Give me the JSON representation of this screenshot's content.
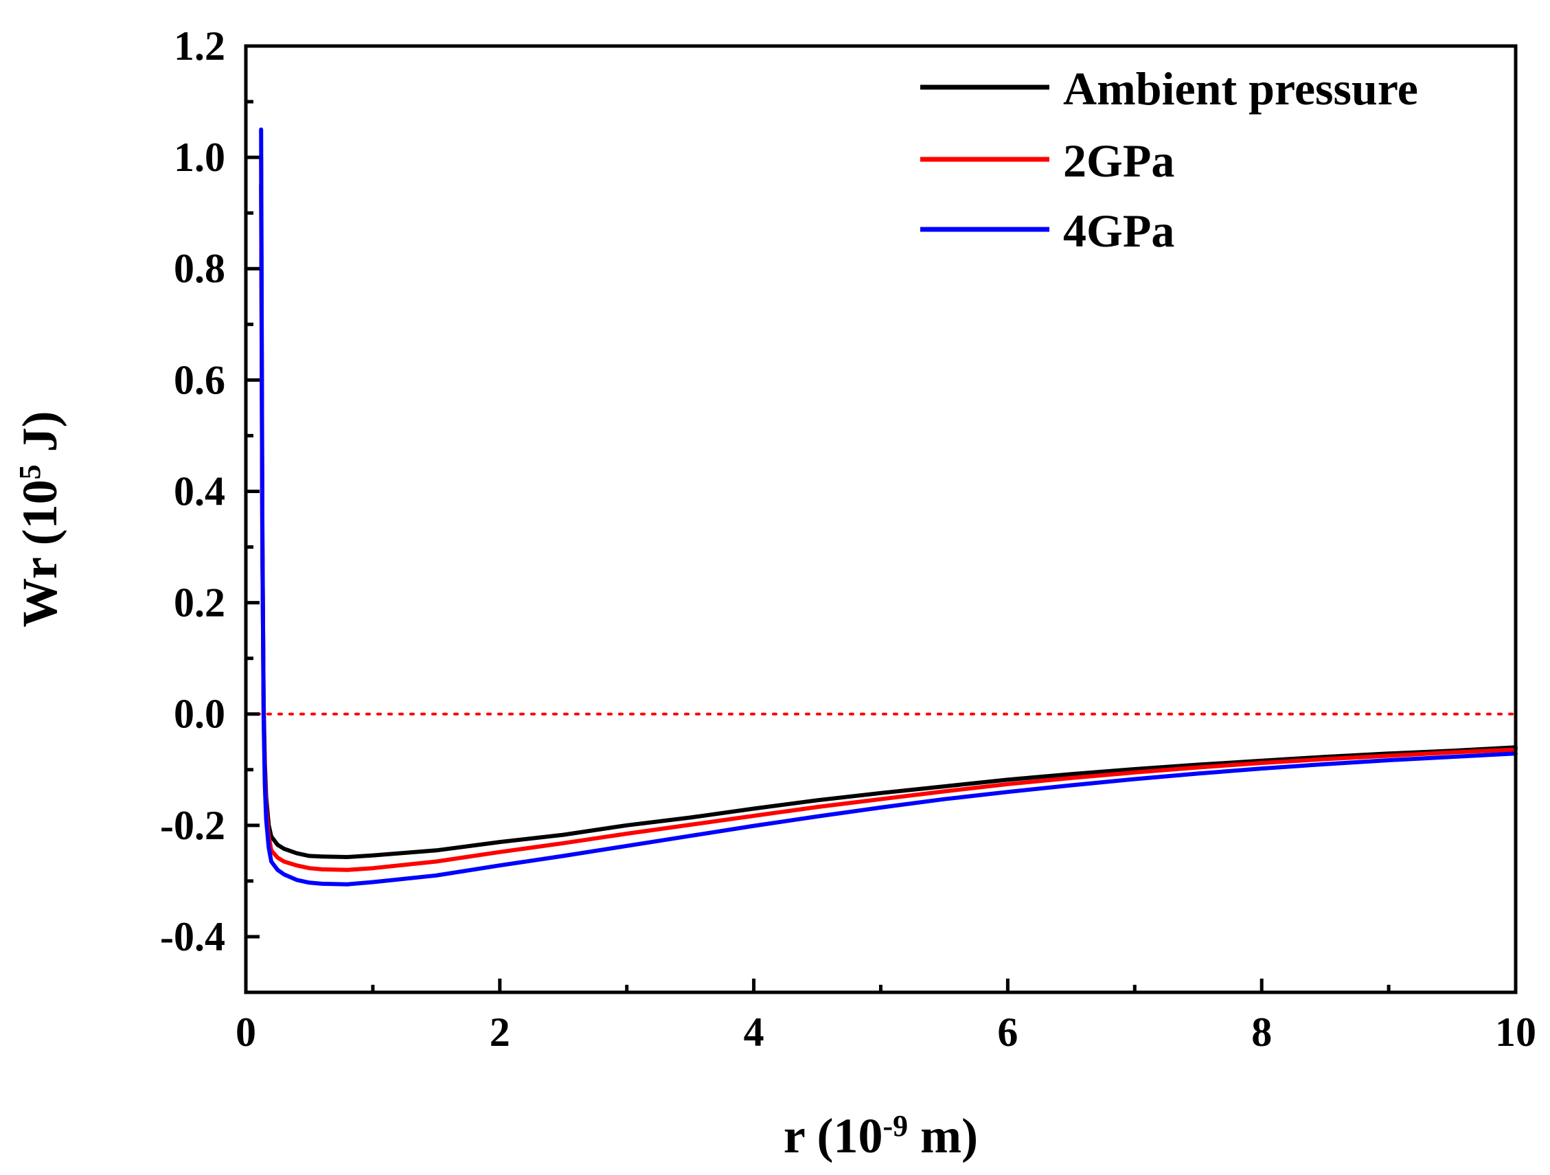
{
  "chart_data": {
    "type": "line",
    "title": "",
    "xlabel": {
      "main": "r (10",
      "sup": "-9",
      "tail": " m)"
    },
    "ylabel": {
      "main": "Wr (10",
      "sup": "5",
      "tail": " J)"
    },
    "xlim": [
      0,
      10
    ],
    "ylim": [
      -0.5,
      1.2
    ],
    "x_ticks": [
      0,
      2,
      4,
      6,
      8,
      10
    ],
    "x_tick_labels": [
      "0",
      "2",
      "4",
      "6",
      "8",
      "10"
    ],
    "y_ticks": [
      -0.4,
      -0.2,
      0.0,
      0.2,
      0.4,
      0.6,
      0.8,
      1.0,
      1.2
    ],
    "y_tick_labels": [
      "-0.4",
      "-0.2",
      "0.0",
      "0.2",
      "0.4",
      "0.6",
      "0.8",
      "1.0",
      "1.2"
    ],
    "grid": false,
    "legend_position": "top-right",
    "reference_line": {
      "y": 0.0,
      "style": "dotted",
      "color": "#ff0000"
    },
    "series": [
      {
        "name": "Ambient pressure",
        "color": "#000000",
        "x": [
          0.12,
          0.13,
          0.14,
          0.15,
          0.16,
          0.18,
          0.2,
          0.25,
          0.3,
          0.4,
          0.5,
          0.6,
          0.8,
          1.0,
          1.5,
          2.0,
          2.5,
          3.0,
          3.5,
          4.0,
          4.5,
          5.0,
          5.5,
          6.0,
          6.5,
          7.0,
          7.5,
          8.0,
          8.5,
          9.0,
          9.5,
          10.0
        ],
        "y": [
          0.95,
          0.3,
          0.02,
          -0.09,
          -0.15,
          -0.2,
          -0.22,
          -0.235,
          -0.242,
          -0.25,
          -0.255,
          -0.256,
          -0.257,
          -0.254,
          -0.245,
          -0.23,
          -0.217,
          -0.2,
          -0.186,
          -0.17,
          -0.155,
          -0.142,
          -0.13,
          -0.118,
          -0.108,
          -0.099,
          -0.091,
          -0.084,
          -0.077,
          -0.071,
          -0.066,
          -0.06
        ]
      },
      {
        "name": "2GPa",
        "color": "#ff0000",
        "x": [
          0.12,
          0.13,
          0.14,
          0.15,
          0.16,
          0.18,
          0.2,
          0.25,
          0.3,
          0.4,
          0.5,
          0.6,
          0.8,
          1.0,
          1.5,
          2.0,
          2.5,
          3.0,
          3.5,
          4.0,
          4.5,
          5.0,
          5.5,
          6.0,
          6.5,
          7.0,
          7.5,
          8.0,
          8.5,
          9.0,
          9.5,
          10.0
        ],
        "y": [
          1.0,
          0.32,
          0.0,
          -0.11,
          -0.17,
          -0.22,
          -0.245,
          -0.258,
          -0.265,
          -0.272,
          -0.277,
          -0.279,
          -0.28,
          -0.277,
          -0.265,
          -0.248,
          -0.232,
          -0.215,
          -0.199,
          -0.183,
          -0.167,
          -0.153,
          -0.139,
          -0.126,
          -0.115,
          -0.105,
          -0.096,
          -0.088,
          -0.081,
          -0.075,
          -0.069,
          -0.064
        ]
      },
      {
        "name": "4GPa",
        "color": "#0000ff",
        "x": [
          0.12,
          0.13,
          0.14,
          0.15,
          0.16,
          0.18,
          0.2,
          0.25,
          0.3,
          0.4,
          0.5,
          0.6,
          0.8,
          1.0,
          1.5,
          2.0,
          2.5,
          3.0,
          3.5,
          4.0,
          4.5,
          5.0,
          5.5,
          6.0,
          6.5,
          7.0,
          7.5,
          8.0,
          8.5,
          9.0,
          9.5,
          10.0
        ],
        "y": [
          1.05,
          0.35,
          -0.01,
          -0.13,
          -0.19,
          -0.24,
          -0.265,
          -0.28,
          -0.288,
          -0.298,
          -0.303,
          -0.305,
          -0.306,
          -0.302,
          -0.29,
          -0.272,
          -0.255,
          -0.237,
          -0.219,
          -0.201,
          -0.184,
          -0.168,
          -0.153,
          -0.14,
          -0.128,
          -0.117,
          -0.107,
          -0.098,
          -0.09,
          -0.083,
          -0.077,
          -0.071
        ]
      }
    ]
  }
}
